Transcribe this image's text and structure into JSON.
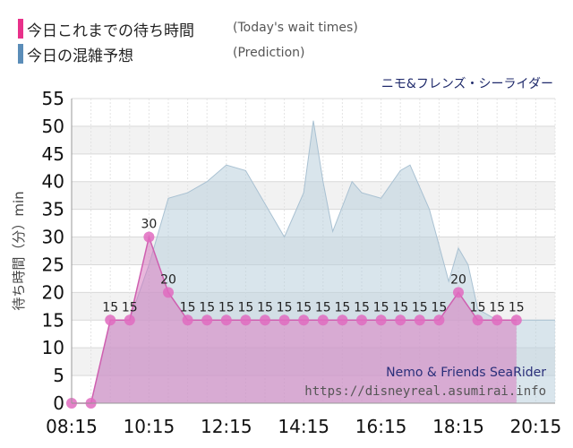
{
  "legend": [
    {
      "label": "今日これまでの待ち時間",
      "sub": "(Today's wait times)",
      "color": "#e8318a"
    },
    {
      "label": "今日の混雑予想",
      "sub": "(Prediction)",
      "color": "#5b8db8"
    }
  ],
  "chart_data": {
    "type": "area",
    "title": "ニモ&フレンズ・シーライダー",
    "watermark_title": "Nemo & Friends SeaRider",
    "watermark_url": "https://disneyreal.asumirai.info",
    "ylabel": "待ち時間（分）min",
    "ylim": [
      0,
      55
    ],
    "yticks": [
      0,
      5,
      10,
      15,
      20,
      25,
      30,
      35,
      40,
      45,
      50,
      55
    ],
    "xlim": [
      "08:15",
      "20:45"
    ],
    "xtick_labels": [
      "08:15",
      "10:15",
      "12:15",
      "14:15",
      "16:15",
      "18:15",
      "20:15"
    ],
    "grid": true,
    "series": [
      {
        "name": "今日の混雑予想",
        "color": "#b9cfdd",
        "points": [
          {
            "t": "08:15",
            "v": 0
          },
          {
            "t": "08:45",
            "v": 0
          },
          {
            "t": "09:15",
            "v": 15
          },
          {
            "t": "09:45",
            "v": 15
          },
          {
            "t": "10:15",
            "v": 25
          },
          {
            "t": "10:45",
            "v": 37
          },
          {
            "t": "11:15",
            "v": 38
          },
          {
            "t": "11:45",
            "v": 40
          },
          {
            "t": "12:15",
            "v": 43
          },
          {
            "t": "12:45",
            "v": 42
          },
          {
            "t": "13:15",
            "v": 36
          },
          {
            "t": "13:45",
            "v": 30
          },
          {
            "t": "14:15",
            "v": 38
          },
          {
            "t": "14:30",
            "v": 51
          },
          {
            "t": "14:45",
            "v": 40
          },
          {
            "t": "15:00",
            "v": 31
          },
          {
            "t": "15:30",
            "v": 40
          },
          {
            "t": "15:45",
            "v": 38
          },
          {
            "t": "16:15",
            "v": 37
          },
          {
            "t": "16:45",
            "v": 42
          },
          {
            "t": "17:00",
            "v": 43
          },
          {
            "t": "17:30",
            "v": 35
          },
          {
            "t": "18:00",
            "v": 22
          },
          {
            "t": "18:15",
            "v": 28
          },
          {
            "t": "18:30",
            "v": 25
          },
          {
            "t": "18:45",
            "v": 17
          },
          {
            "t": "19:15",
            "v": 15
          },
          {
            "t": "19:45",
            "v": 15
          },
          {
            "t": "20:15",
            "v": 15
          },
          {
            "t": "20:45",
            "v": 15
          }
        ]
      },
      {
        "name": "今日これまでの待ち時間",
        "color": "#d77cc0",
        "points": [
          {
            "t": "08:15",
            "v": 0
          },
          {
            "t": "08:45",
            "v": 0
          },
          {
            "t": "09:15",
            "v": 15
          },
          {
            "t": "09:45",
            "v": 15
          },
          {
            "t": "10:15",
            "v": 30
          },
          {
            "t": "10:45",
            "v": 20
          },
          {
            "t": "11:15",
            "v": 15
          },
          {
            "t": "11:45",
            "v": 15
          },
          {
            "t": "12:15",
            "v": 15
          },
          {
            "t": "12:45",
            "v": 15
          },
          {
            "t": "13:15",
            "v": 15
          },
          {
            "t": "13:45",
            "v": 15
          },
          {
            "t": "14:15",
            "v": 15
          },
          {
            "t": "14:45",
            "v": 15
          },
          {
            "t": "15:15",
            "v": 15
          },
          {
            "t": "15:45",
            "v": 15
          },
          {
            "t": "16:15",
            "v": 15
          },
          {
            "t": "16:45",
            "v": 15
          },
          {
            "t": "17:15",
            "v": 15
          },
          {
            "t": "17:45",
            "v": 15
          },
          {
            "t": "18:15",
            "v": 20
          },
          {
            "t": "18:45",
            "v": 15
          },
          {
            "t": "19:15",
            "v": 15
          },
          {
            "t": "19:45",
            "v": 15
          }
        ],
        "data_labels": [
          "",
          "",
          "15",
          "15",
          "30",
          "20",
          "15",
          "15",
          "15",
          "15",
          "15",
          "15",
          "15",
          "15",
          "15",
          "15",
          "15",
          "15",
          "15",
          "15",
          "20",
          "15",
          "15",
          "15"
        ]
      }
    ]
  }
}
